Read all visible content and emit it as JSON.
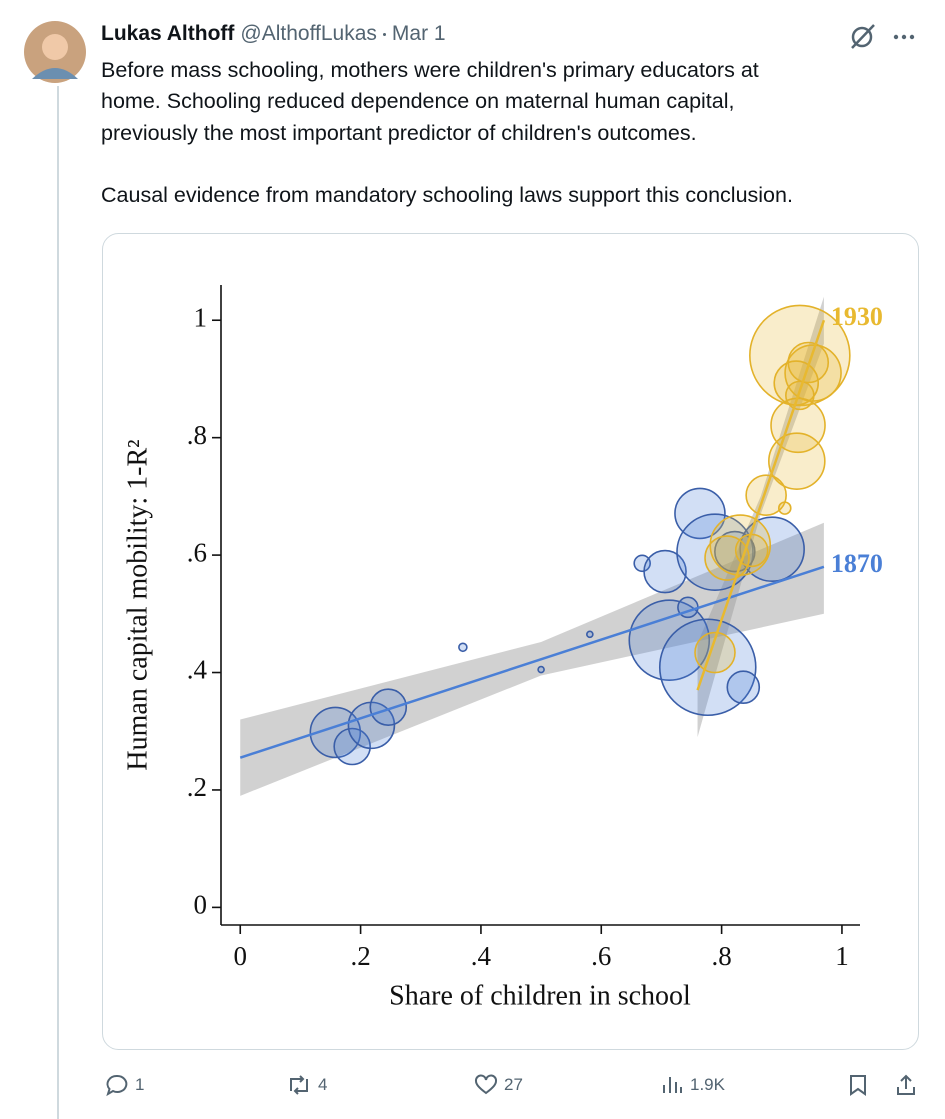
{
  "tweet": {
    "author": {
      "name": "Lukas Althoff",
      "handle": "@AlthoffLukas",
      "date": "Mar 1"
    },
    "text_lines": [
      "Before mass schooling, mothers were children's primary educators at",
      "home. Schooling reduced dependence on maternal human capital,",
      "previously the most important predictor of children's outcomes.",
      "Causal evidence from mandatory schooling laws support this conclusion."
    ],
    "stats": {
      "replies": 1,
      "reposts": 4,
      "likes": 27,
      "views": "1.9K"
    }
  },
  "chart_data": {
    "type": "bubble",
    "x_label": "Share of children in school",
    "y_label": "Human capital mobility: 1-R²",
    "xlim": [
      -0.032,
      1.03
    ],
    "ylim": [
      -0.03,
      1.06
    ],
    "xticks": [
      0,
      {
        "value": 0.2,
        "label": ".2"
      },
      {
        "value": 0.4,
        "label": ".4"
      },
      {
        "value": 0.6,
        "label": ".6"
      },
      {
        "value": 0.8,
        "label": ".8"
      },
      1
    ],
    "yticks": [
      0,
      {
        "value": 0.2,
        "label": ".2"
      },
      {
        "value": 0.4,
        "label": ".4"
      },
      {
        "value": 0.6,
        "label": ".6"
      },
      {
        "value": 0.8,
        "label": ".8"
      },
      1
    ],
    "series": [
      {
        "name": "1870",
        "color": "#4a7fd6",
        "edge": "#3a5ea8",
        "x": [
          0.158,
          0.186,
          0.218,
          0.246,
          0.37,
          0.5,
          0.581,
          0.668,
          0.706,
          0.713,
          0.744,
          0.764,
          0.789,
          0.777,
          0.836,
          0.884,
          0.822
        ],
        "y": [
          0.298,
          0.274,
          0.31,
          0.341,
          0.443,
          0.405,
          0.465,
          0.586,
          0.572,
          0.455,
          0.511,
          0.671,
          0.605,
          0.409,
          0.375,
          0.61,
          0.606
        ],
        "sizes": [
          25,
          18,
          23,
          18,
          4,
          3,
          3,
          8,
          21,
          40,
          10,
          25,
          38,
          48,
          16,
          32,
          20
        ],
        "fit_x": [
          0,
          0.97
        ],
        "fit_y": [
          0.255,
          0.58
        ],
        "band_x": [
          0,
          0.5,
          0.97
        ],
        "band_lower": [
          0.19,
          0.395,
          0.5
        ],
        "band_upper": [
          0.32,
          0.452,
          0.655
        ]
      },
      {
        "name": "1930",
        "color": "#e8b930",
        "edge": "#e3b22a",
        "x": [
          0.93,
          0.952,
          0.944,
          0.924,
          0.93,
          0.927,
          0.925,
          0.874,
          0.905,
          0.831,
          0.809,
          0.789,
          0.85
        ],
        "y": [
          0.94,
          0.91,
          0.928,
          0.893,
          0.872,
          0.821,
          0.76,
          0.702,
          0.68,
          0.617,
          0.595,
          0.434,
          0.608
        ],
        "sizes": [
          50,
          28,
          20,
          22,
          14,
          27,
          28,
          20,
          6,
          30,
          22,
          20,
          16
        ],
        "fit_x": [
          0.76,
          0.97
        ],
        "fit_y": [
          0.37,
          1.0
        ],
        "band_x": [
          0.76,
          0.865,
          0.97
        ],
        "band_lower": [
          0.29,
          0.67,
          0.96
        ],
        "band_upper": [
          0.45,
          0.7,
          1.04
        ]
      }
    ]
  }
}
